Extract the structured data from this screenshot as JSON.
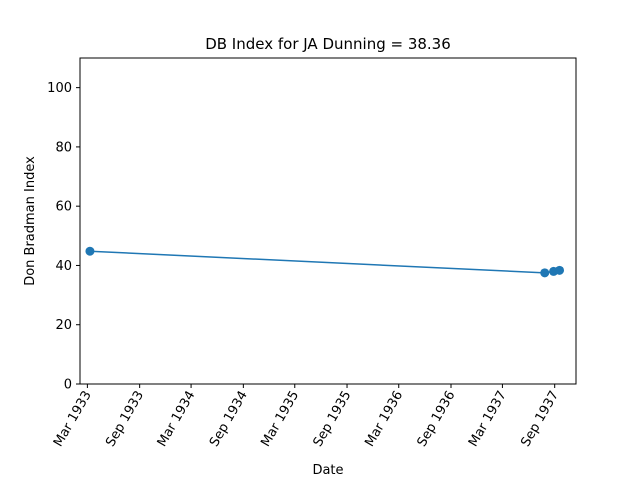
{
  "chart_data": {
    "type": "line",
    "title": "DB Index for JA Dunning = 38.36",
    "xlabel": "Date",
    "ylabel": "Don Bradman Index",
    "ylim": [
      0,
      110
    ],
    "yticks": [
      0,
      20,
      40,
      60,
      80,
      100
    ],
    "xlim": [
      "1933-02-03",
      "1937-11-15"
    ],
    "xticks": [
      {
        "date": "1933-03-01",
        "label": "Mar 1933"
      },
      {
        "date": "1933-09-01",
        "label": "Sep 1933"
      },
      {
        "date": "1934-03-01",
        "label": "Mar 1934"
      },
      {
        "date": "1934-09-01",
        "label": "Sep 1934"
      },
      {
        "date": "1935-03-01",
        "label": "Mar 1935"
      },
      {
        "date": "1935-09-01",
        "label": "Sep 1935"
      },
      {
        "date": "1936-03-01",
        "label": "Mar 1936"
      },
      {
        "date": "1936-09-01",
        "label": "Sep 1936"
      },
      {
        "date": "1937-03-01",
        "label": "Mar 1937"
      },
      {
        "date": "1937-09-01",
        "label": "Sep 1937"
      }
    ],
    "grid": false,
    "color": "#1f77b4",
    "series": [
      {
        "x": [
          "1933-03-10",
          "1937-07-28",
          "1937-08-28",
          "1937-09-18"
        ],
        "y": [
          44.8,
          37.5,
          38.0,
          38.36
        ]
      }
    ]
  }
}
